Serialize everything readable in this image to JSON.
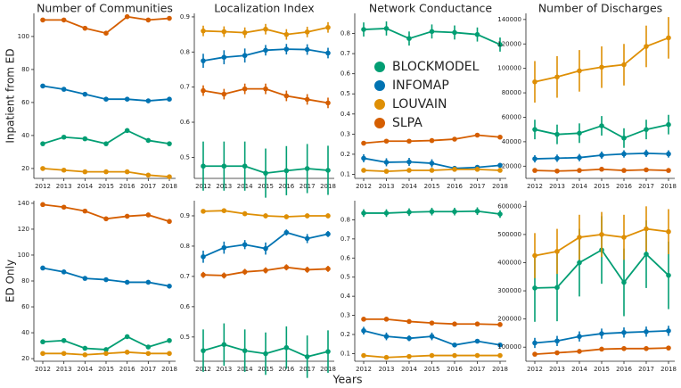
{
  "figure": {
    "xlabel": "Years"
  },
  "chart_data": [
    {
      "type": "line",
      "title": "Number of Communities",
      "ylabel": "Inpatient from ED",
      "categories": [
        "2012",
        "2013",
        "2014",
        "2015",
        "2016",
        "2017",
        "2018"
      ],
      "ylim": [
        14,
        114
      ],
      "yticks": [
        20,
        40,
        60,
        80,
        100
      ],
      "series": [
        {
          "name": "BLOCKMODEL",
          "color": "#029e73",
          "values": [
            35,
            39,
            38,
            35,
            43,
            37,
            35
          ]
        },
        {
          "name": "INFOMAP",
          "color": "#0173b2",
          "values": [
            70,
            68,
            65,
            62,
            62,
            61,
            62
          ]
        },
        {
          "name": "LOUVAIN",
          "color": "#de8f05",
          "values": [
            20,
            19,
            18,
            18,
            18,
            16,
            15
          ]
        },
        {
          "name": "SLPA",
          "color": "#d55e00",
          "values": [
            110,
            110,
            105,
            102,
            112,
            110,
            111
          ]
        }
      ]
    },
    {
      "type": "line",
      "title": "Localization Index",
      "categories": [
        "2012",
        "2013",
        "2014",
        "2015",
        "2016",
        "2017",
        "2018"
      ],
      "ylim": [
        0.44,
        0.91
      ],
      "yticks": [
        0.5,
        0.6,
        0.7,
        0.8,
        0.9
      ],
      "series": [
        {
          "name": "BLOCKMODEL",
          "color": "#029e73",
          "values": [
            0.475,
            0.475,
            0.475,
            0.455,
            0.462,
            0.468,
            0.463
          ],
          "errors": [
            0.07,
            0.07,
            0.07,
            0.07,
            0.07,
            0.07,
            0.07
          ]
        },
        {
          "name": "INFOMAP",
          "color": "#0173b2",
          "values": [
            0.775,
            0.785,
            0.79,
            0.805,
            0.808,
            0.807,
            0.797
          ],
          "errors": [
            0.02,
            0.02,
            0.02,
            0.015,
            0.015,
            0.015,
            0.015
          ]
        },
        {
          "name": "LOUVAIN",
          "color": "#de8f05",
          "values": [
            0.86,
            0.858,
            0.855,
            0.865,
            0.85,
            0.857,
            0.87
          ],
          "errors": [
            0.015,
            0.015,
            0.015,
            0.015,
            0.015,
            0.015,
            0.015
          ]
        },
        {
          "name": "SLPA",
          "color": "#d55e00",
          "values": [
            0.69,
            0.68,
            0.695,
            0.695,
            0.675,
            0.665,
            0.655
          ],
          "errors": [
            0.015,
            0.015,
            0.015,
            0.015,
            0.015,
            0.015,
            0.015
          ]
        }
      ]
    },
    {
      "type": "line",
      "title": "Network Conductance",
      "legend": "center right",
      "categories": [
        "2012",
        "2013",
        "2014",
        "2015",
        "2016",
        "2017",
        "2018"
      ],
      "ylim": [
        0.08,
        0.9
      ],
      "yticks": [
        0.1,
        0.2,
        0.3,
        0.4,
        0.5,
        0.6,
        0.7,
        0.8
      ],
      "series": [
        {
          "name": "BLOCKMODEL",
          "color": "#029e73",
          "values": [
            0.82,
            0.825,
            0.775,
            0.81,
            0.805,
            0.795,
            0.745
          ],
          "errors": [
            0.035,
            0.035,
            0.035,
            0.035,
            0.035,
            0.035,
            0.035
          ]
        },
        {
          "name": "INFOMAP",
          "color": "#0173b2",
          "values": [
            0.18,
            0.16,
            0.162,
            0.155,
            0.13,
            0.135,
            0.145
          ],
          "errors": [
            0.02,
            0.02,
            0.02,
            0.02,
            0.01,
            0.01,
            0.01
          ]
        },
        {
          "name": "LOUVAIN",
          "color": "#de8f05",
          "values": [
            0.12,
            0.115,
            0.12,
            0.12,
            0.125,
            0.125,
            0.12
          ]
        },
        {
          "name": "SLPA",
          "color": "#d55e00",
          "values": [
            0.255,
            0.265,
            0.265,
            0.268,
            0.275,
            0.295,
            0.285
          ],
          "errors": [
            0.01,
            0.01,
            0.01,
            0.01,
            0.01,
            0.01,
            0.01
          ]
        }
      ]
    },
    {
      "type": "line",
      "title": "Number of Discharges",
      "categories": [
        "2012",
        "2013",
        "2014",
        "2015",
        "2016",
        "2017",
        "2018"
      ],
      "ylim": [
        10000,
        145000
      ],
      "yticks": [
        20000,
        40000,
        60000,
        80000,
        100000,
        120000,
        140000
      ],
      "series": [
        {
          "name": "BLOCKMODEL",
          "color": "#029e73",
          "values": [
            50000,
            46000,
            47000,
            53000,
            43000,
            50000,
            54000
          ],
          "errors": [
            8000,
            8000,
            8000,
            8000,
            8000,
            8000,
            8000
          ]
        },
        {
          "name": "INFOMAP",
          "color": "#0173b2",
          "values": [
            26000,
            26500,
            27000,
            29000,
            30000,
            30500,
            30000
          ],
          "errors": [
            3000,
            3000,
            3000,
            3000,
            3000,
            3000,
            3000
          ]
        },
        {
          "name": "LOUVAIN",
          "color": "#de8f05",
          "values": [
            89000,
            93000,
            98000,
            101000,
            103000,
            118000,
            125000
          ],
          "errors": [
            17000,
            17000,
            17000,
            17000,
            17000,
            17000,
            17000
          ]
        },
        {
          "name": "SLPA",
          "color": "#d55e00",
          "values": [
            16500,
            16000,
            16500,
            17500,
            16500,
            17000,
            16500
          ],
          "errors": [
            1500,
            1500,
            1500,
            1500,
            1500,
            1500,
            1500
          ]
        }
      ]
    },
    {
      "type": "line",
      "ylabel": "ED Only",
      "categories": [
        "2012",
        "2013",
        "2014",
        "2015",
        "2016",
        "2017",
        "2018"
      ],
      "ylim": [
        18,
        142
      ],
      "yticks": [
        20,
        40,
        60,
        80,
        100,
        120,
        140
      ],
      "series": [
        {
          "name": "BLOCKMODEL",
          "color": "#029e73",
          "values": [
            33,
            34,
            28,
            27,
            37,
            29,
            34
          ]
        },
        {
          "name": "INFOMAP",
          "color": "#0173b2",
          "values": [
            90,
            87,
            82,
            81,
            79,
            79,
            76
          ]
        },
        {
          "name": "LOUVAIN",
          "color": "#de8f05",
          "values": [
            24,
            24,
            23,
            24,
            25,
            24,
            24
          ]
        },
        {
          "name": "SLPA",
          "color": "#d55e00",
          "values": [
            139,
            137,
            134,
            128,
            130,
            131,
            126
          ]
        }
      ]
    },
    {
      "type": "line",
      "categories": [
        "2012",
        "2013",
        "2014",
        "2015",
        "2016",
        "2017",
        "2018"
      ],
      "ylim": [
        0.42,
        0.95
      ],
      "yticks": [
        0.5,
        0.6,
        0.7,
        0.8,
        0.9
      ],
      "series": [
        {
          "name": "BLOCKMODEL",
          "color": "#029e73",
          "values": [
            0.455,
            0.475,
            0.455,
            0.445,
            0.465,
            0.435,
            0.452
          ],
          "errors": [
            0.07,
            0.07,
            0.07,
            0.07,
            0.07,
            0.07,
            0.07
          ]
        },
        {
          "name": "INFOMAP",
          "color": "#0173b2",
          "values": [
            0.765,
            0.795,
            0.805,
            0.792,
            0.845,
            0.825,
            0.84
          ],
          "errors": [
            0.02,
            0.02,
            0.015,
            0.02,
            0.01,
            0.015,
            0.01
          ]
        },
        {
          "name": "LOUVAIN",
          "color": "#de8f05",
          "values": [
            0.915,
            0.917,
            0.907,
            0.9,
            0.897,
            0.9,
            0.9
          ],
          "errors": [
            0.005,
            0.005,
            0.008,
            0.008,
            0.008,
            0.008,
            0.008
          ]
        },
        {
          "name": "SLPA",
          "color": "#d55e00",
          "values": [
            0.705,
            0.703,
            0.715,
            0.72,
            0.73,
            0.722,
            0.725
          ],
          "errors": [
            0.01,
            0.01,
            0.01,
            0.01,
            0.01,
            0.01,
            0.01
          ]
        }
      ]
    },
    {
      "type": "line",
      "categories": [
        "2012",
        "2013",
        "2014",
        "2015",
        "2016",
        "2017",
        "2018"
      ],
      "ylim": [
        0.06,
        0.9
      ],
      "yticks": [
        0.1,
        0.2,
        0.3,
        0.4,
        0.5,
        0.6,
        0.7,
        0.8
      ],
      "series": [
        {
          "name": "BLOCKMODEL",
          "color": "#029e73",
          "values": [
            0.835,
            0.835,
            0.84,
            0.843,
            0.843,
            0.845,
            0.83
          ],
          "errors": [
            0.02,
            0.02,
            0.02,
            0.02,
            0.02,
            0.02,
            0.02
          ]
        },
        {
          "name": "INFOMAP",
          "color": "#0173b2",
          "values": [
            0.22,
            0.19,
            0.18,
            0.19,
            0.145,
            0.165,
            0.145
          ],
          "errors": [
            0.02,
            0.02,
            0.015,
            0.02,
            0.01,
            0.01,
            0.01
          ]
        },
        {
          "name": "LOUVAIN",
          "color": "#de8f05",
          "values": [
            0.09,
            0.08,
            0.085,
            0.09,
            0.09,
            0.09,
            0.09
          ]
        },
        {
          "name": "SLPA",
          "color": "#d55e00",
          "values": [
            0.28,
            0.28,
            0.268,
            0.26,
            0.255,
            0.255,
            0.252
          ]
        }
      ]
    },
    {
      "type": "line",
      "categories": [
        "2012",
        "2013",
        "2014",
        "2015",
        "2016",
        "2017",
        "2018"
      ],
      "ylim": [
        50000,
        620000
      ],
      "yticks": [
        100000,
        200000,
        300000,
        400000,
        500000,
        600000
      ],
      "series": [
        {
          "name": "BLOCKMODEL",
          "color": "#029e73",
          "values": [
            310000,
            312000,
            400000,
            445000,
            330000,
            430000,
            355000
          ],
          "errors": [
            120000,
            120000,
            120000,
            120000,
            120000,
            120000,
            120000
          ]
        },
        {
          "name": "INFOMAP",
          "color": "#0173b2",
          "values": [
            115000,
            122000,
            138000,
            148000,
            152000,
            155000,
            158000
          ],
          "errors": [
            18000,
            18000,
            18000,
            18000,
            18000,
            18000,
            18000
          ]
        },
        {
          "name": "LOUVAIN",
          "color": "#de8f05",
          "values": [
            425000,
            440000,
            490000,
            500000,
            490000,
            520000,
            510000
          ],
          "errors": [
            80000,
            80000,
            80000,
            80000,
            80000,
            80000,
            80000
          ]
        },
        {
          "name": "SLPA",
          "color": "#d55e00",
          "values": [
            75000,
            80000,
            85000,
            93000,
            95000,
            95000,
            97000
          ],
          "errors": [
            8000,
            8000,
            8000,
            8000,
            8000,
            8000,
            8000
          ]
        }
      ]
    }
  ]
}
